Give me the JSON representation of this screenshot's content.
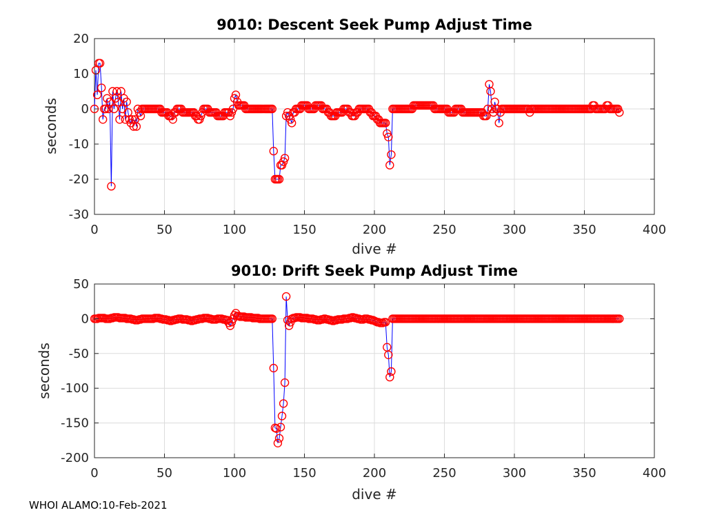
{
  "chart_data": [
    {
      "type": "line",
      "title": "9010: Descent Seek Pump Adjust Time",
      "xlabel": "dive #",
      "ylabel": "seconds",
      "xlim": [
        0,
        400
      ],
      "ylim": [
        -30,
        20
      ],
      "xticks": [
        0,
        50,
        100,
        150,
        200,
        250,
        300,
        350,
        400
      ],
      "yticks": [
        -30,
        -20,
        -10,
        0,
        10,
        20
      ],
      "grid": true,
      "line_color": "#0000ff",
      "marker_color": "#ff0000",
      "anchors": [
        [
          0,
          0
        ],
        [
          1,
          11
        ],
        [
          2,
          4
        ],
        [
          3,
          13
        ],
        [
          4,
          13
        ],
        [
          5,
          6
        ],
        [
          6,
          -3
        ],
        [
          7,
          0
        ],
        [
          8,
          0
        ],
        [
          9,
          3
        ],
        [
          10,
          0
        ],
        [
          11,
          2
        ],
        [
          12,
          -22
        ],
        [
          13,
          5
        ],
        [
          14,
          0
        ],
        [
          15,
          3
        ],
        [
          16,
          5
        ],
        [
          17,
          2
        ],
        [
          18,
          -3
        ],
        [
          19,
          5
        ],
        [
          20,
          0
        ],
        [
          21,
          3
        ],
        [
          22,
          -3
        ],
        [
          23,
          2
        ],
        [
          24,
          -1
        ],
        [
          25,
          -3
        ],
        [
          26,
          -4
        ],
        [
          27,
          -3
        ],
        [
          28,
          -5
        ],
        [
          29,
          -3
        ],
        [
          30,
          -5
        ],
        [
          31,
          0
        ],
        [
          32,
          -1
        ],
        [
          33,
          -2
        ],
        [
          34,
          0
        ],
        [
          40,
          0
        ],
        [
          45,
          0
        ],
        [
          50,
          -1
        ],
        [
          55,
          -2
        ],
        [
          56,
          -3
        ],
        [
          57,
          -1
        ],
        [
          60,
          0
        ],
        [
          65,
          -1
        ],
        [
          70,
          -1
        ],
        [
          75,
          -3
        ],
        [
          78,
          0
        ],
        [
          85,
          -1
        ],
        [
          90,
          -2
        ],
        [
          95,
          -1
        ],
        [
          97,
          -2
        ],
        [
          99,
          0
        ],
        [
          100,
          3
        ],
        [
          101,
          4
        ],
        [
          102,
          2
        ],
        [
          103,
          1
        ],
        [
          105,
          1
        ],
        [
          110,
          0
        ],
        [
          115,
          0
        ],
        [
          120,
          0
        ],
        [
          125,
          0
        ],
        [
          127,
          0
        ],
        [
          128,
          -12
        ],
        [
          129,
          -20
        ],
        [
          130,
          -20
        ],
        [
          131,
          -20
        ],
        [
          132,
          -20
        ],
        [
          133,
          -16
        ],
        [
          134,
          -16
        ],
        [
          135,
          -15
        ],
        [
          136,
          -14
        ],
        [
          137,
          -2
        ],
        [
          138,
          -1
        ],
        [
          139,
          -2
        ],
        [
          140,
          -3
        ],
        [
          141,
          -4
        ],
        [
          142,
          -1
        ],
        [
          145,
          0
        ],
        [
          150,
          1
        ],
        [
          155,
          0
        ],
        [
          160,
          1
        ],
        [
          165,
          0
        ],
        [
          170,
          -2
        ],
        [
          175,
          -1
        ],
        [
          180,
          0
        ],
        [
          185,
          -2
        ],
        [
          188,
          -1
        ],
        [
          190,
          0
        ],
        [
          195,
          0
        ],
        [
          200,
          -2
        ],
        [
          202,
          -3
        ],
        [
          205,
          -4
        ],
        [
          208,
          -4
        ],
        [
          209,
          -7
        ],
        [
          210,
          -8
        ],
        [
          211,
          -16
        ],
        [
          212,
          -13
        ],
        [
          213,
          0
        ],
        [
          215,
          0
        ],
        [
          220,
          0
        ],
        [
          225,
          0
        ],
        [
          230,
          1
        ],
        [
          235,
          1
        ],
        [
          240,
          1
        ],
        [
          245,
          0
        ],
        [
          250,
          0
        ],
        [
          255,
          -1
        ],
        [
          260,
          0
        ],
        [
          265,
          -1
        ],
        [
          270,
          -1
        ],
        [
          275,
          -1
        ],
        [
          280,
          -2
        ],
        [
          281,
          0
        ],
        [
          282,
          7
        ],
        [
          283,
          5
        ],
        [
          284,
          0
        ],
        [
          285,
          -1
        ],
        [
          286,
          2
        ],
        [
          287,
          0
        ],
        [
          288,
          0
        ],
        [
          289,
          -4
        ],
        [
          290,
          -1
        ],
        [
          292,
          0
        ],
        [
          295,
          0
        ],
        [
          300,
          0
        ],
        [
          310,
          0
        ],
        [
          311,
          -1
        ],
        [
          312,
          0
        ],
        [
          320,
          0
        ],
        [
          330,
          0
        ],
        [
          340,
          0
        ],
        [
          350,
          0
        ],
        [
          355,
          0
        ],
        [
          357,
          1
        ],
        [
          358,
          0
        ],
        [
          360,
          0
        ],
        [
          365,
          0
        ],
        [
          367,
          1
        ],
        [
          368,
          0
        ],
        [
          370,
          0
        ],
        [
          372,
          0
        ],
        [
          374,
          0
        ],
        [
          375,
          -1
        ]
      ]
    },
    {
      "type": "line",
      "title": "9010: Drift Seek Pump Adjust Time",
      "xlabel": "dive #",
      "ylabel": "seconds",
      "xlim": [
        0,
        400
      ],
      "ylim": [
        -200,
        50
      ],
      "xticks": [
        0,
        50,
        100,
        150,
        200,
        250,
        300,
        350,
        400
      ],
      "yticks": [
        -200,
        -150,
        -100,
        -50,
        0,
        50
      ],
      "grid": true,
      "line_color": "#0000ff",
      "marker_color": "#ff0000",
      "anchors": [
        [
          0,
          0
        ],
        [
          5,
          1
        ],
        [
          10,
          0
        ],
        [
          15,
          2
        ],
        [
          20,
          1
        ],
        [
          25,
          0
        ],
        [
          30,
          -2
        ],
        [
          35,
          0
        ],
        [
          40,
          0
        ],
        [
          45,
          1
        ],
        [
          50,
          -1
        ],
        [
          55,
          -3
        ],
        [
          60,
          0
        ],
        [
          65,
          -1
        ],
        [
          70,
          -3
        ],
        [
          75,
          0
        ],
        [
          80,
          1
        ],
        [
          85,
          -1
        ],
        [
          90,
          0
        ],
        [
          95,
          -2
        ],
        [
          97,
          -10
        ],
        [
          99,
          0
        ],
        [
          100,
          5
        ],
        [
          101,
          8
        ],
        [
          102,
          4
        ],
        [
          105,
          3
        ],
        [
          110,
          2
        ],
        [
          115,
          1
        ],
        [
          120,
          0
        ],
        [
          125,
          0
        ],
        [
          127,
          0
        ],
        [
          128,
          -71
        ],
        [
          129,
          -157
        ],
        [
          130,
          -158
        ],
        [
          131,
          -179
        ],
        [
          132,
          -172
        ],
        [
          133,
          -156
        ],
        [
          134,
          -140
        ],
        [
          135,
          -122
        ],
        [
          136,
          -92
        ],
        [
          137,
          32
        ],
        [
          138,
          -2
        ],
        [
          139,
          -10
        ],
        [
          140,
          -5
        ],
        [
          141,
          0
        ],
        [
          145,
          2
        ],
        [
          150,
          1
        ],
        [
          155,
          0
        ],
        [
          160,
          -2
        ],
        [
          165,
          0
        ],
        [
          170,
          -3
        ],
        [
          175,
          -1
        ],
        [
          180,
          0
        ],
        [
          185,
          2
        ],
        [
          190,
          -1
        ],
        [
          195,
          0
        ],
        [
          200,
          -3
        ],
        [
          202,
          -5
        ],
        [
          205,
          -6
        ],
        [
          208,
          -5
        ],
        [
          209,
          -41
        ],
        [
          210,
          -52
        ],
        [
          211,
          -84
        ],
        [
          212,
          -76
        ],
        [
          213,
          0
        ],
        [
          220,
          0
        ],
        [
          240,
          0
        ],
        [
          260,
          0
        ],
        [
          280,
          0
        ],
        [
          300,
          0
        ],
        [
          320,
          0
        ],
        [
          340,
          0
        ],
        [
          360,
          0
        ],
        [
          375,
          0
        ]
      ]
    }
  ],
  "footer": "WHOI ALAMO:10-Feb-2021"
}
